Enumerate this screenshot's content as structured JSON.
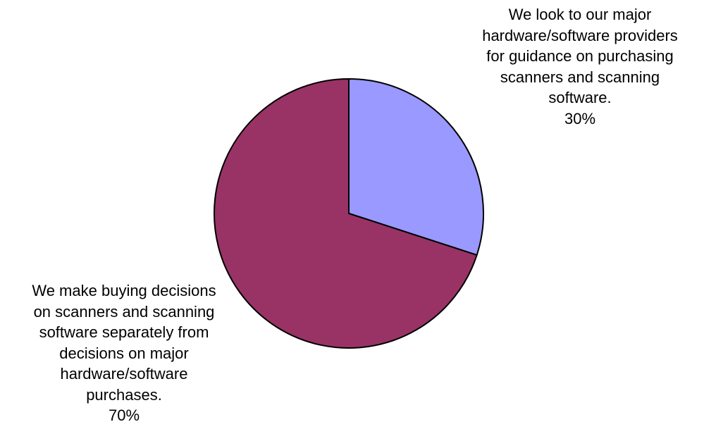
{
  "chart_data": {
    "type": "pie",
    "slices": [
      {
        "label_lines": [
          "We look to our major",
          "hardware/software providers",
          "for guidance on purchasing",
          "scanners and scanning",
          "software."
        ],
        "value": 30,
        "value_text": "30%",
        "color": "#9999ff"
      },
      {
        "label_lines": [
          "We make buying decisions",
          "on scanners and scanning",
          "software separately from",
          "decisions on major",
          "hardware/software",
          "purchases."
        ],
        "value": 70,
        "value_text": "70%",
        "color": "#993366"
      }
    ],
    "start_angle_deg": 0,
    "direction": "clockwise",
    "legend": "none"
  }
}
